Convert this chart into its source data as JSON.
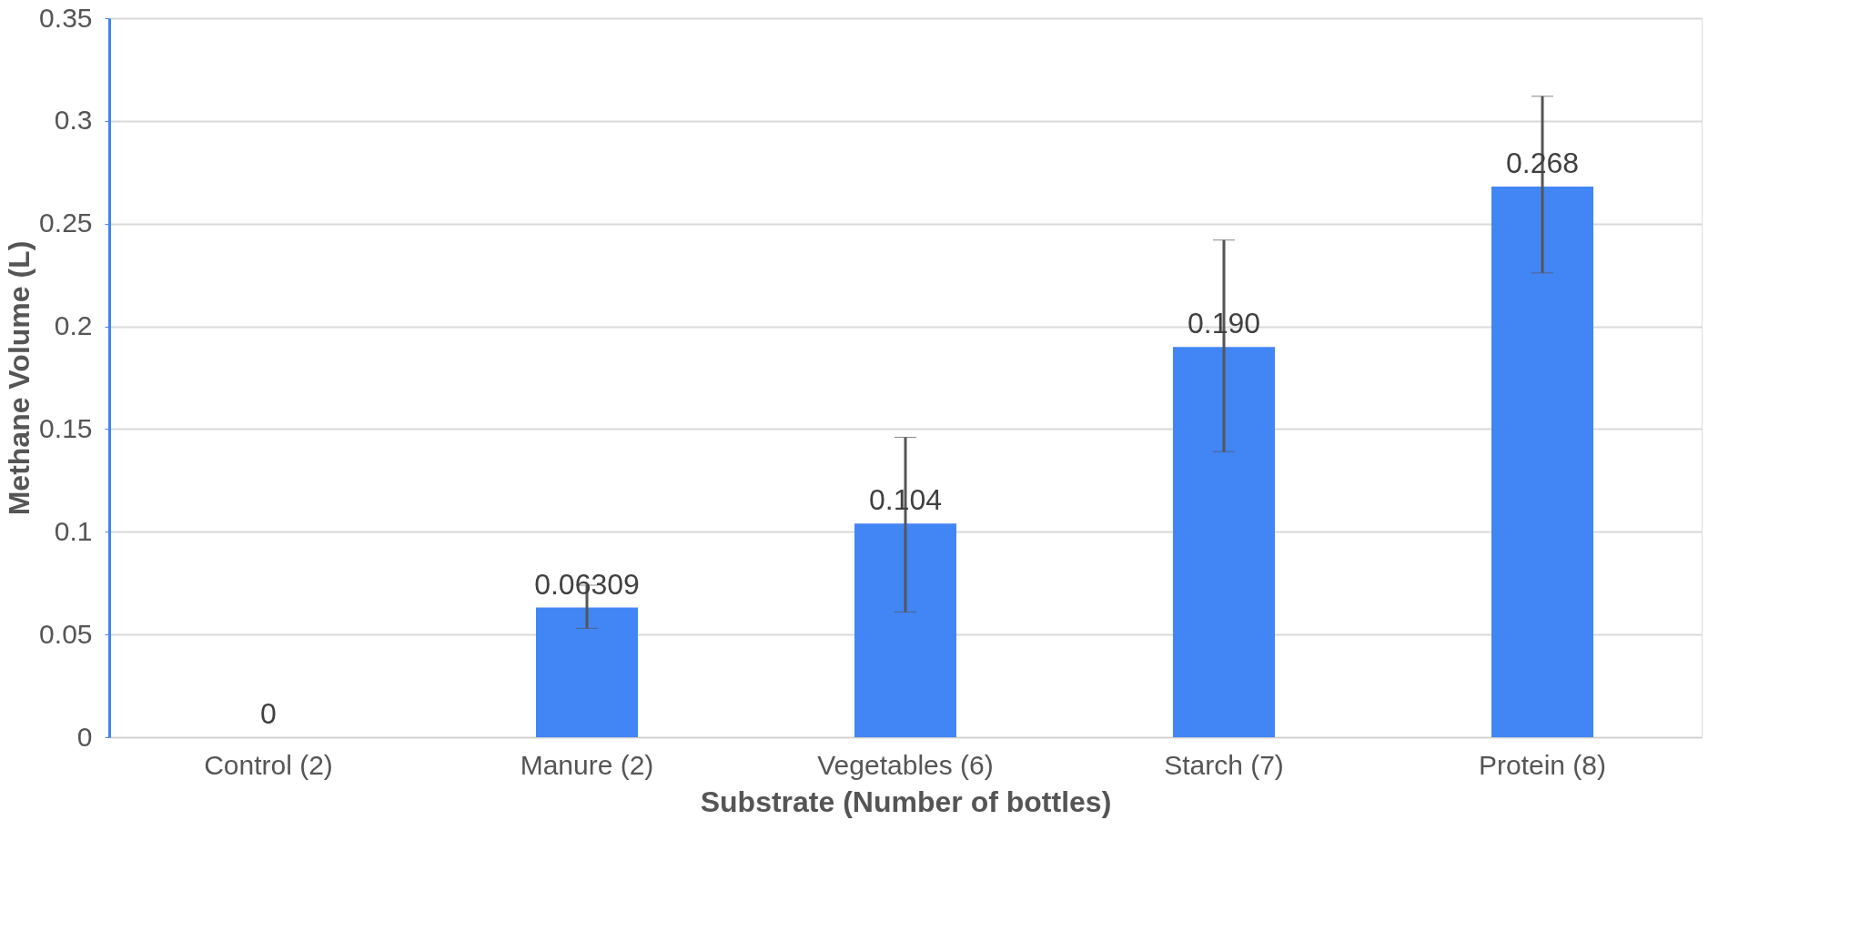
{
  "chart_data": {
    "type": "bar",
    "xlabel": "Substrate (Number of bottles)",
    "ylabel": "Methane Volume (L)",
    "categories": [
      "Control (2)",
      "Manure (2)",
      "Vegetables (6)",
      "Starch (7)",
      "Protein (8)"
    ],
    "values": [
      0,
      0.06309,
      0.104,
      0.19,
      0.268
    ],
    "value_labels": [
      "0",
      "0.06309",
      "0.104",
      "0.190",
      "0.268"
    ],
    "errors": [
      null,
      [
        0.053,
        0.074
      ],
      [
        0.061,
        0.146
      ],
      [
        0.139,
        0.242
      ],
      [
        0.226,
        0.312
      ]
    ],
    "color": "#4285f4",
    "ylim": [
      0,
      0.35
    ],
    "yticks": [
      0,
      0.05,
      0.1,
      0.15,
      0.2,
      0.25,
      0.3,
      0.35
    ],
    "grid": "y"
  }
}
